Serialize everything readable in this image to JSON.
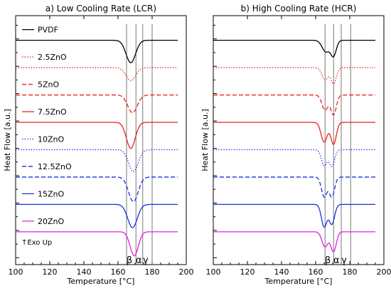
{
  "chart_data": [
    {
      "type": "line",
      "title": "a) Low Cooling Rate (LCR)",
      "xlabel": "Temperature [°C]",
      "ylabel": "Heat Flow [a.u.]",
      "xlim": [
        100,
        200
      ],
      "xticks": [
        100,
        120,
        140,
        160,
        180,
        200
      ],
      "grid": false,
      "legend_position": "inline-left",
      "annotation": "↑Exo Up",
      "phase_lines": [
        {
          "label": "β",
          "x": 165
        },
        {
          "label": "α",
          "x": 170.5
        },
        {
          "label": "γ",
          "x": 174.5
        },
        {
          "label": "",
          "x": 180
        }
      ],
      "series": [
        {
          "name": "PVDF",
          "color": "#000000",
          "dash": "solid",
          "baseline": 9.0,
          "peaks": [
            {
              "x": 167.5,
              "depth": 0.82,
              "w": 2.8
            }
          ]
        },
        {
          "name": "2.5ZnO",
          "color": "#e8231f",
          "dash": "dotted",
          "baseline": 8.0,
          "peaks": [
            {
              "x": 167.5,
              "depth": 0.48,
              "w": 2.8
            }
          ]
        },
        {
          "name": "5ZnO",
          "color": "#e8231f",
          "dash": "dashed",
          "baseline": 7.0,
          "peaks": [
            {
              "x": 168.5,
              "depth": 0.65,
              "w": 2.8
            }
          ]
        },
        {
          "name": "7.5ZnO",
          "color": "#e8231f",
          "dash": "solid",
          "baseline": 6.0,
          "peaks": [
            {
              "x": 167.5,
              "depth": 0.95,
              "w": 2.6
            }
          ]
        },
        {
          "name": "10ZnO",
          "color": "#1a2fe0",
          "dash": "dotted",
          "baseline": 5.0,
          "peaks": [
            {
              "x": 169,
              "depth": 0.8,
              "w": 2.8
            }
          ]
        },
        {
          "name": "12.5ZnO",
          "color": "#1a2fe0",
          "dash": "dashed",
          "baseline": 4.0,
          "peaks": [
            {
              "x": 169,
              "depth": 0.9,
              "w": 2.8
            }
          ]
        },
        {
          "name": "15ZnO",
          "color": "#1a2fe0",
          "dash": "solid",
          "baseline": 3.0,
          "peaks": [
            {
              "x": 168.5,
              "depth": 0.85,
              "w": 2.8
            }
          ]
        },
        {
          "name": "20ZnO",
          "color": "#e020e0",
          "dash": "solid",
          "baseline": 2.0,
          "peaks": [
            {
              "x": 169.5,
              "depth": 0.88,
              "w": 2.4
            }
          ]
        }
      ]
    },
    {
      "type": "line",
      "title": "b) High Cooling Rate (HCR)",
      "xlabel": "Temperature [°C]",
      "ylabel": "Heat Flow [a.u.]",
      "xlim": [
        100,
        200
      ],
      "xticks": [
        100,
        120,
        140,
        160,
        180,
        200
      ],
      "grid": false,
      "legend_position": "none",
      "annotation": "",
      "phase_lines": [
        {
          "label": "β",
          "x": 165.5
        },
        {
          "label": "α",
          "x": 170.5
        },
        {
          "label": "γ",
          "x": 175
        },
        {
          "label": "",
          "x": 180.5
        }
      ],
      "series": [
        {
          "name": "PVDF",
          "color": "#000000",
          "dash": "solid",
          "baseline": 9.0,
          "peaks": [
            {
              "x": 166,
              "depth": 0.42,
              "w": 2.2
            },
            {
              "x": 170.5,
              "depth": 0.55,
              "w": 1.6
            }
          ]
        },
        {
          "name": "2.5ZnO",
          "color": "#e8231f",
          "dash": "dotted",
          "baseline": 8.0,
          "peaks": [
            {
              "x": 165.5,
              "depth": 0.45,
              "w": 1.8
            },
            {
              "x": 170.5,
              "depth": 0.58,
              "w": 1.6
            }
          ]
        },
        {
          "name": "5ZnO",
          "color": "#e8231f",
          "dash": "dashed",
          "baseline": 7.0,
          "peaks": [
            {
              "x": 165.5,
              "depth": 0.55,
              "w": 1.8
            },
            {
              "x": 170.5,
              "depth": 0.72,
              "w": 1.6
            }
          ]
        },
        {
          "name": "7.5ZnO",
          "color": "#e8231f",
          "dash": "solid",
          "baseline": 6.0,
          "peaks": [
            {
              "x": 165,
              "depth": 0.72,
              "w": 1.8
            },
            {
              "x": 170.5,
              "depth": 0.8,
              "w": 1.6
            }
          ]
        },
        {
          "name": "10ZnO",
          "color": "#1a2fe0",
          "dash": "dotted",
          "baseline": 5.0,
          "peaks": [
            {
              "x": 165,
              "depth": 0.58,
              "w": 1.6
            },
            {
              "x": 169.5,
              "depth": 0.6,
              "w": 1.6
            }
          ]
        },
        {
          "name": "12.5ZnO",
          "color": "#1a2fe0",
          "dash": "dashed",
          "baseline": 4.0,
          "peaks": [
            {
              "x": 165,
              "depth": 0.72,
              "w": 1.6
            },
            {
              "x": 169.5,
              "depth": 0.72,
              "w": 1.6
            }
          ]
        },
        {
          "name": "15ZnO",
          "color": "#1a2fe0",
          "dash": "solid",
          "baseline": 3.0,
          "peaks": [
            {
              "x": 165,
              "depth": 0.82,
              "w": 1.6
            },
            {
              "x": 169.5,
              "depth": 0.72,
              "w": 1.6
            }
          ]
        },
        {
          "name": "20ZnO",
          "color": "#e020e0",
          "dash": "solid",
          "baseline": 2.0,
          "peaks": [
            {
              "x": 165.5,
              "depth": 0.55,
              "w": 1.8
            },
            {
              "x": 170.5,
              "depth": 0.72,
              "w": 1.6
            }
          ]
        }
      ]
    }
  ]
}
